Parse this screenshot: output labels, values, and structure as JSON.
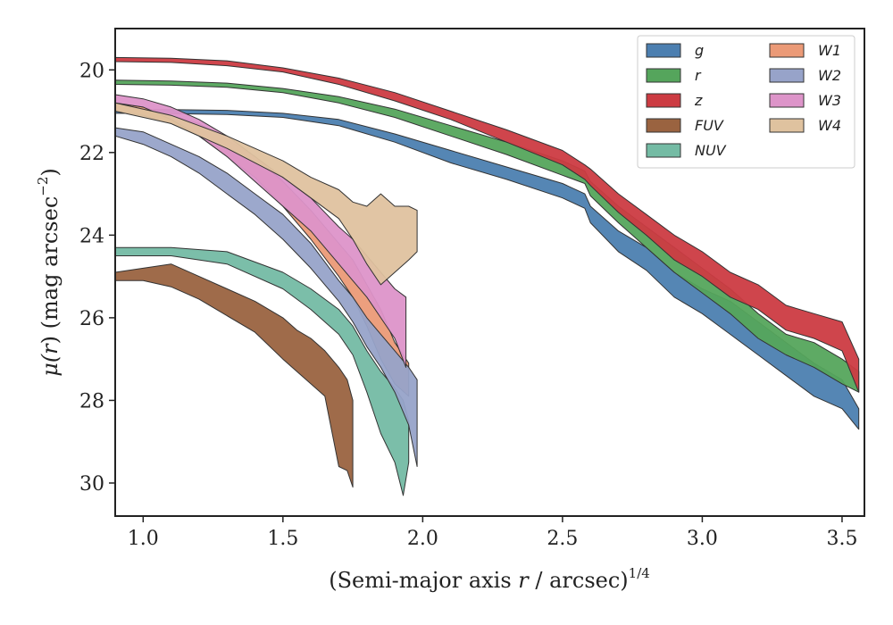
{
  "chart_data": {
    "type": "area",
    "xlabel_main": "(Semi-major axis ",
    "xlabel_var": "r",
    "xlabel_mid": " / arcsec)",
    "xlabel_sup": "1/4",
    "ylabel_main": "μ(",
    "ylabel_var": "r",
    "ylabel_mid": ") (mag arcsec",
    "ylabel_sup": "−2",
    "ylabel_end": ")",
    "xlim": [
      0.9,
      3.58
    ],
    "ylim": [
      19.0,
      30.8
    ],
    "y_inverted": true,
    "x_ticks": [
      1.0,
      1.5,
      2.0,
      2.5,
      3.0,
      3.5
    ],
    "x_tick_labels": [
      "1.0",
      "1.5",
      "2.0",
      "2.5",
      "3.0",
      "3.5"
    ],
    "y_ticks": [
      20,
      22,
      24,
      26,
      28,
      30
    ],
    "y_tick_labels": [
      "20",
      "22",
      "24",
      "26",
      "28",
      "30"
    ],
    "grid": false,
    "legend_position": "top-right",
    "legend_columns": 2,
    "series": [
      {
        "name": "g",
        "color": "#4c7fb0",
        "x": [
          0.9,
          1.1,
          1.3,
          1.5,
          1.7,
          1.9,
          2.1,
          2.3,
          2.5,
          2.58,
          2.6,
          2.7,
          2.8,
          2.9,
          3.0,
          3.1,
          3.2,
          3.3,
          3.4,
          3.5,
          3.56
        ],
        "y_bright": [
          20.95,
          20.96,
          20.98,
          21.05,
          21.2,
          21.55,
          21.95,
          22.35,
          22.75,
          23.0,
          23.3,
          23.9,
          24.3,
          24.9,
          25.3,
          25.6,
          26.1,
          26.6,
          27.1,
          27.5,
          28.2
        ],
        "y_faint": [
          21.05,
          21.06,
          21.08,
          21.15,
          21.35,
          21.75,
          22.25,
          22.65,
          23.1,
          23.35,
          23.7,
          24.4,
          24.85,
          25.5,
          25.9,
          26.4,
          26.9,
          27.4,
          27.9,
          28.2,
          28.7
        ]
      },
      {
        "name": "r",
        "color": "#55a55c",
        "x": [
          0.9,
          1.1,
          1.3,
          1.5,
          1.7,
          1.9,
          2.1,
          2.3,
          2.5,
          2.58,
          2.6,
          2.7,
          2.8,
          2.9,
          3.0,
          3.1,
          3.2,
          3.3,
          3.4,
          3.5,
          3.56
        ],
        "y_bright": [
          20.25,
          20.27,
          20.32,
          20.45,
          20.65,
          20.95,
          21.35,
          21.75,
          22.2,
          22.45,
          22.7,
          23.3,
          23.8,
          24.3,
          24.8,
          25.3,
          25.9,
          26.4,
          26.6,
          27.0,
          27.3
        ],
        "y_faint": [
          20.35,
          20.37,
          20.42,
          20.55,
          20.8,
          21.15,
          21.6,
          22.05,
          22.55,
          22.75,
          23.05,
          23.7,
          24.3,
          24.9,
          25.4,
          25.9,
          26.5,
          26.9,
          27.2,
          27.6,
          27.8
        ]
      },
      {
        "name": "z",
        "color": "#cc3b42",
        "x": [
          0.9,
          1.1,
          1.3,
          1.5,
          1.7,
          1.9,
          2.1,
          2.3,
          2.5,
          2.58,
          2.6,
          2.7,
          2.8,
          2.9,
          3.0,
          3.1,
          3.2,
          3.3,
          3.4,
          3.5,
          3.56
        ],
        "y_bright": [
          19.7,
          19.72,
          19.78,
          19.95,
          20.2,
          20.55,
          21.0,
          21.45,
          21.95,
          22.3,
          22.4,
          23.0,
          23.5,
          24.0,
          24.4,
          24.9,
          25.2,
          25.7,
          25.9,
          26.1,
          27.0
        ],
        "y_faint": [
          19.8,
          19.82,
          19.9,
          20.05,
          20.35,
          20.75,
          21.2,
          21.75,
          22.3,
          22.65,
          22.8,
          23.45,
          24.0,
          24.6,
          25.0,
          25.5,
          25.8,
          26.3,
          26.5,
          26.8,
          27.8
        ]
      },
      {
        "name": "FUV",
        "color": "#9a6340",
        "x": [
          0.9,
          1.0,
          1.1,
          1.2,
          1.3,
          1.4,
          1.5,
          1.55,
          1.6,
          1.65,
          1.7,
          1.73,
          1.75
        ],
        "y_bright": [
          24.9,
          24.8,
          24.7,
          25.0,
          25.3,
          25.6,
          26.0,
          26.3,
          26.5,
          26.8,
          27.2,
          27.5,
          28.0
        ],
        "y_faint": [
          25.1,
          25.1,
          25.25,
          25.55,
          25.95,
          26.35,
          27.0,
          27.3,
          27.6,
          27.9,
          29.6,
          29.7,
          30.1
        ]
      },
      {
        "name": "NUV",
        "color": "#74bba4",
        "x": [
          0.9,
          1.1,
          1.3,
          1.5,
          1.6,
          1.7,
          1.75,
          1.8,
          1.85,
          1.9,
          1.93,
          1.95
        ],
        "y_bright": [
          24.3,
          24.3,
          24.4,
          24.9,
          25.3,
          25.8,
          26.2,
          26.8,
          27.3,
          27.7,
          28.0,
          28.5
        ],
        "y_faint": [
          24.5,
          24.5,
          24.7,
          25.3,
          25.8,
          26.4,
          26.9,
          27.8,
          28.8,
          29.5,
          30.3,
          29.5
        ]
      },
      {
        "name": "W1",
        "color": "#eb9a77",
        "x": [
          0.9,
          1.0,
          1.1,
          1.2,
          1.3,
          1.4,
          1.5,
          1.6,
          1.7,
          1.75,
          1.8,
          1.85,
          1.9,
          1.95
        ],
        "y_bright": [
          20.8,
          20.9,
          21.1,
          21.3,
          21.7,
          22.1,
          22.7,
          23.4,
          24.2,
          24.6,
          25.2,
          25.8,
          26.6,
          27.1
        ],
        "y_faint": [
          21.0,
          21.1,
          21.3,
          21.6,
          22.1,
          22.6,
          23.3,
          24.1,
          25.0,
          25.5,
          26.2,
          27.0,
          27.6,
          27.9
        ]
      },
      {
        "name": "W2",
        "color": "#97a3c9",
        "x": [
          0.9,
          1.0,
          1.1,
          1.2,
          1.3,
          1.4,
          1.5,
          1.6,
          1.7,
          1.75,
          1.8,
          1.85,
          1.9,
          1.95,
          1.98
        ],
        "y_bright": [
          21.4,
          21.5,
          21.8,
          22.1,
          22.5,
          23.0,
          23.5,
          24.2,
          25.1,
          25.5,
          26.0,
          26.4,
          26.8,
          27.2,
          27.5
        ],
        "y_faint": [
          21.6,
          21.8,
          22.1,
          22.5,
          23.0,
          23.5,
          24.1,
          24.8,
          25.6,
          26.1,
          26.7,
          27.2,
          27.8,
          28.6,
          29.6
        ]
      },
      {
        "name": "W3",
        "color": "#dd94c9",
        "x": [
          0.9,
          1.0,
          1.1,
          1.2,
          1.3,
          1.4,
          1.5,
          1.6,
          1.7,
          1.75,
          1.8,
          1.85,
          1.9,
          1.94
        ],
        "y_bright": [
          20.6,
          20.7,
          20.9,
          21.2,
          21.6,
          22.1,
          22.6,
          23.1,
          23.8,
          24.1,
          24.5,
          24.9,
          25.3,
          25.5
        ],
        "y_faint": [
          20.8,
          20.9,
          21.2,
          21.6,
          22.1,
          22.7,
          23.3,
          23.9,
          24.7,
          25.1,
          25.5,
          26.0,
          26.5,
          27.2
        ]
      },
      {
        "name": "W4",
        "color": "#dfc29f",
        "x": [
          0.9,
          1.1,
          1.3,
          1.5,
          1.6,
          1.7,
          1.75,
          1.8,
          1.85,
          1.9,
          1.95,
          1.98
        ],
        "y_bright": [
          20.8,
          21.1,
          21.6,
          22.2,
          22.6,
          22.9,
          23.2,
          23.3,
          23.0,
          23.3,
          23.3,
          23.4
        ],
        "y_faint": [
          21.0,
          21.3,
          21.9,
          22.6,
          23.1,
          23.6,
          24.1,
          24.7,
          25.2,
          24.9,
          24.6,
          24.4
        ]
      }
    ]
  }
}
